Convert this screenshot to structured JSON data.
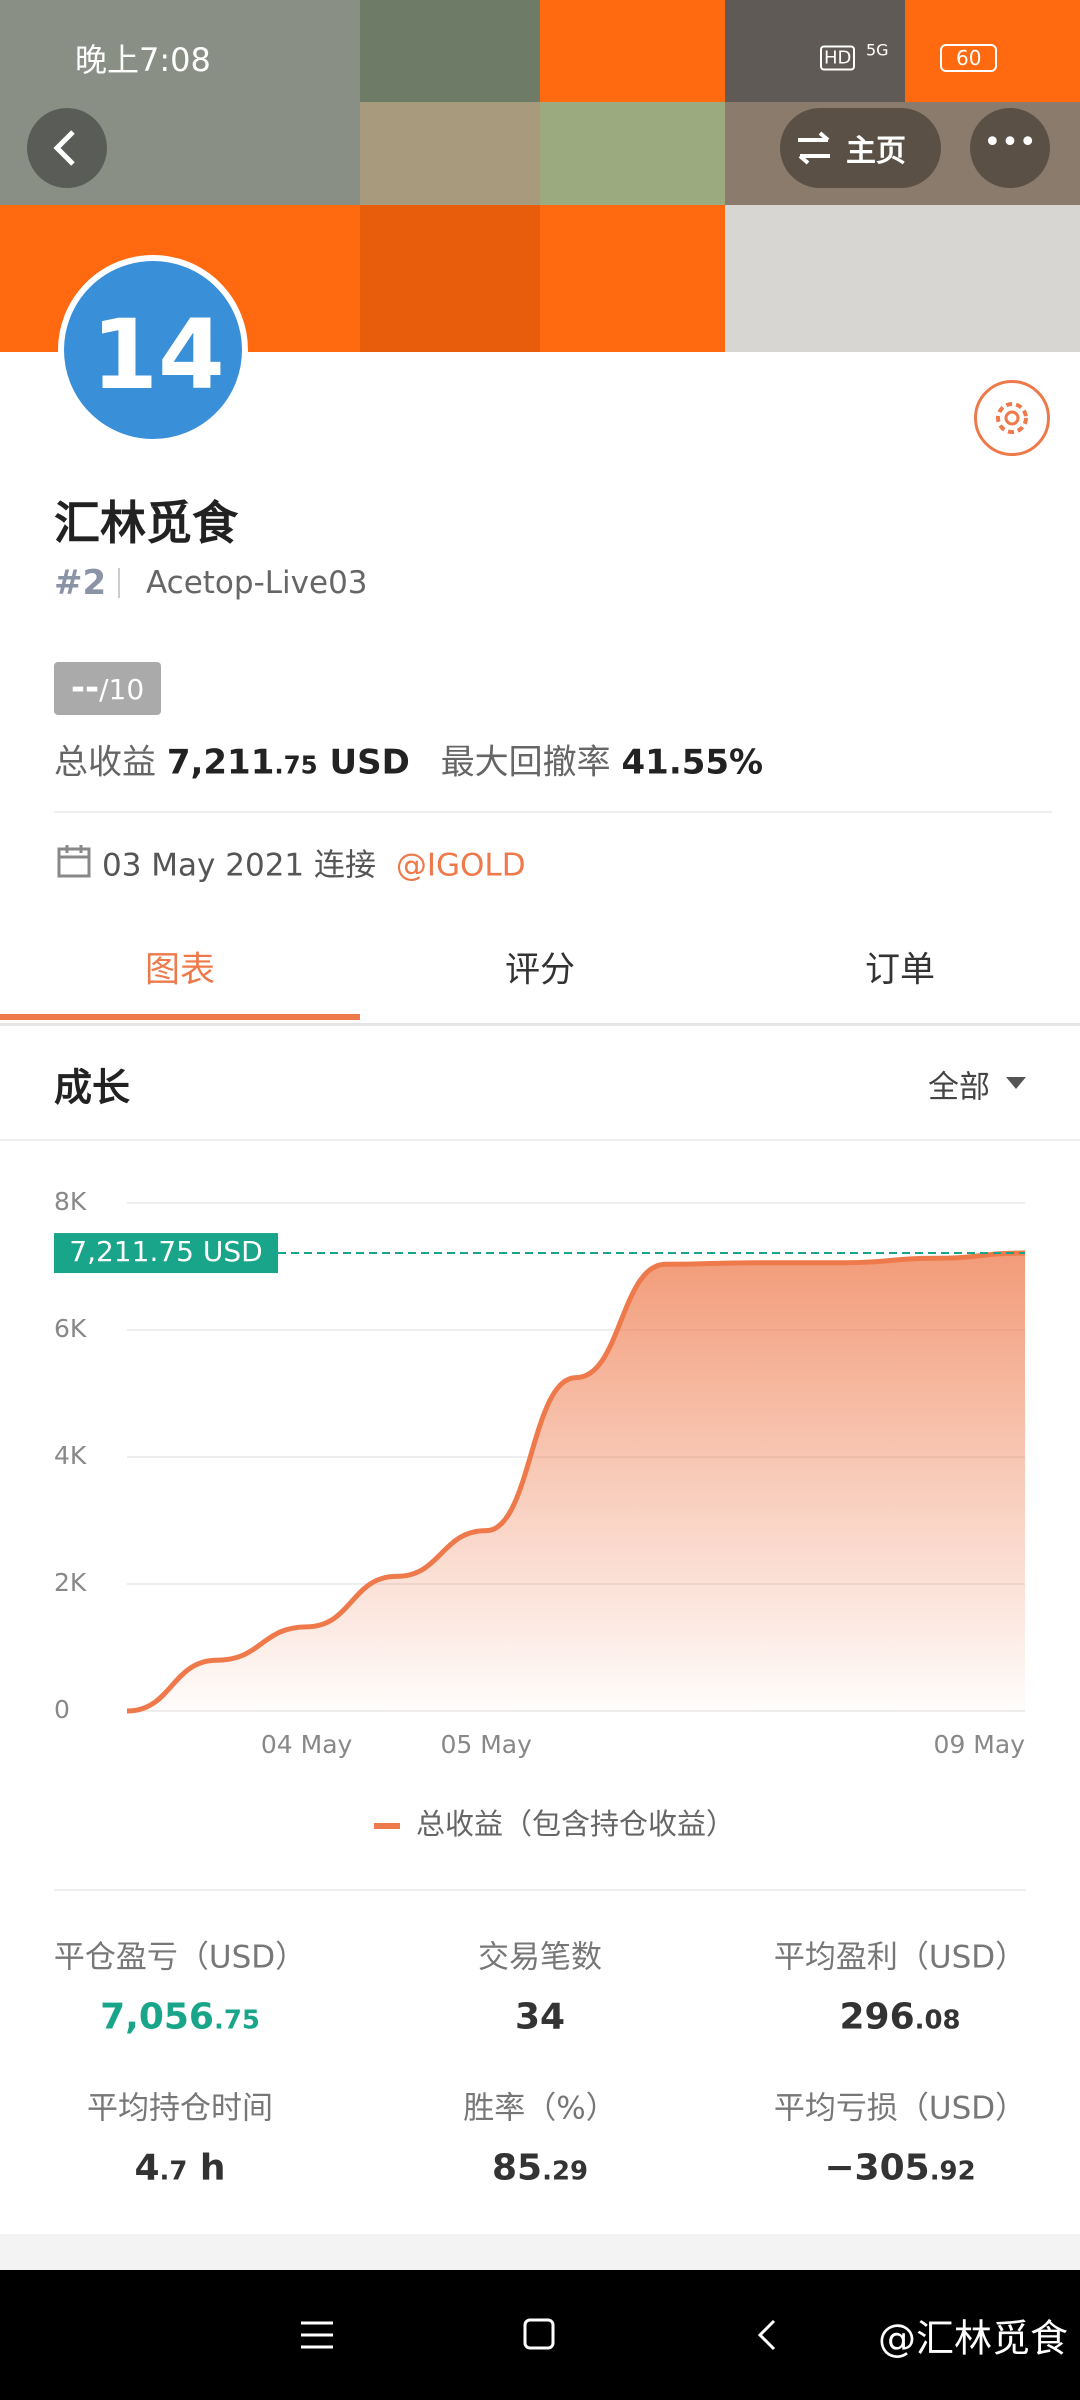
{
  "status_bar": {
    "time": "晚上7:08",
    "hd": "HD",
    "network": "5G",
    "battery": "60"
  },
  "header": {
    "home_button": "主页"
  },
  "profile": {
    "avatar": "14",
    "name": "汇林觅食",
    "rank": "#2",
    "account": "Acetop-Live03",
    "score": "--",
    "score_max": "/10",
    "total_label": "总收益",
    "total_value": "7,211.75 USD",
    "drawdown_label": "最大回撤率",
    "drawdown_value": "41.55%",
    "date": "03 May 2021 连接",
    "broker": "@IGOLD"
  },
  "tabs": [
    "图表",
    "评分",
    "订单"
  ],
  "section": {
    "title": "成长",
    "filter": "全部"
  },
  "chart_data": {
    "type": "area",
    "categories": [
      null,
      null,
      "04 May",
      null,
      "05 May",
      null,
      null,
      null,
      null,
      null,
      "09 May"
    ],
    "series": [
      {
        "name": "总收益（包含持仓收益）",
        "color": "#ee7a4c",
        "values": [
          0,
          800,
          1325,
          2120,
          2840,
          5250,
          7036,
          7060,
          7060,
          7130,
          7211.75
        ]
      }
    ],
    "annotation": "7,211.75 USD",
    "ylim": [
      0,
      8000
    ],
    "yticks": [
      0,
      {
        "value": 2000,
        "label": "2K"
      },
      {
        "value": 4000,
        "label": "4K"
      },
      {
        "value": 6000,
        "label": "6K"
      },
      {
        "value": 8000,
        "label": "8K"
      }
    ],
    "grid": true
  },
  "stats": [
    {
      "label": "平仓盈亏（USD）",
      "value": "7,056.75"
    },
    {
      "label": "交易笔数",
      "value": "34"
    },
    {
      "label": "平均盈利（USD）",
      "value": "296.08"
    },
    {
      "label": "平均持仓时间",
      "value": "4.7 h"
    },
    {
      "label": "胜率（%）",
      "value": "85.29"
    },
    {
      "label": "平均亏损（USD）",
      "value": "−305.92"
    }
  ],
  "nav": {
    "watermark": "@汇林觅食"
  }
}
